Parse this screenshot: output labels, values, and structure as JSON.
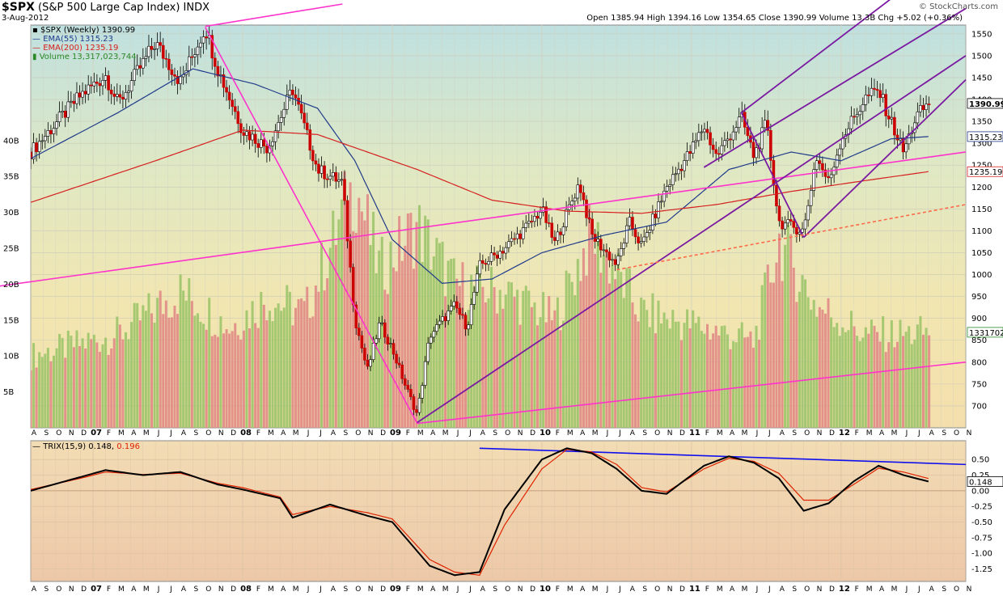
{
  "header": {
    "symbol": "$SPX",
    "name": "(S&P 500 Large Cap Index)",
    "exchange": "INDX",
    "date": "3-Aug-2012",
    "quote": "Open 1385.94  High 1394.16  Low 1354.65  Close 1390.99  Volume 13.3B  Chg +5.02 (+0.36%)",
    "credit": "© StockCharts.com"
  },
  "legend": {
    "price": "$SPX (Weekly) 1390.99",
    "ema55": "EMA(55) 1315.23",
    "ema200": "EMA(200) 1235.19",
    "volume": "Volume 13,317,023,744"
  },
  "trix_legend": {
    "label": "TRIX(15,9) 0.148,",
    "signal": "0.196"
  },
  "last_labels": {
    "price": "1390.99",
    "ema55": "1315.23",
    "ema200": "1235.19",
    "volume": "1331702",
    "trix": "0.148"
  },
  "colors": {
    "up": "#2a8a2a",
    "down": "#cc0000",
    "ema55": "#1f3a8a",
    "ema200": "#d62020",
    "magenta": "#ff33cc",
    "purple": "#7a1aa0",
    "blue": "#1010ee",
    "dashed": "#ff6a4a"
  },
  "chart_data": [
    {
      "type": "candlestick",
      "title": "$SPX (S&P 500 Large Cap Index) INDX",
      "y_ticks": [
        700,
        750,
        800,
        850,
        900,
        950,
        1000,
        1050,
        1100,
        1150,
        1200,
        1250,
        1300,
        1350,
        1400,
        1450,
        1500,
        1550
      ],
      "ylim": [
        650,
        1570
      ],
      "volume_ticks": [
        "5B",
        "10B",
        "15B",
        "20B",
        "25B",
        "30B",
        "35B",
        "40B"
      ],
      "x_axis_labels": [
        "A",
        "S",
        "O",
        "N",
        "D",
        "07",
        "F",
        "M",
        "A",
        "M",
        "J",
        "J",
        "A",
        "S",
        "O",
        "N",
        "D",
        "08",
        "F",
        "M",
        "A",
        "M",
        "J",
        "J",
        "A",
        "S",
        "O",
        "N",
        "D",
        "09",
        "F",
        "M",
        "A",
        "M",
        "J",
        "J",
        "A",
        "S",
        "O",
        "N",
        "D",
        "10",
        "F",
        "M",
        "A",
        "M",
        "J",
        "J",
        "A",
        "S",
        "O",
        "N",
        "D",
        "11",
        "F",
        "M",
        "A",
        "M",
        "J",
        "J",
        "A",
        "S",
        "O",
        "N",
        "D",
        "12",
        "F",
        "M",
        "A",
        "M",
        "J",
        "J",
        "A",
        "S",
        "O",
        "N"
      ],
      "x_range": [
        "2006-08",
        "2012-11"
      ],
      "price_keypoints": [
        {
          "date": "2006-08",
          "close": 1280
        },
        {
          "date": "2006-12",
          "close": 1410
        },
        {
          "date": "2007-02",
          "close": 1455
        },
        {
          "date": "2007-03",
          "close": 1390
        },
        {
          "date": "2007-06",
          "close": 1530
        },
        {
          "date": "2007-08",
          "close": 1440
        },
        {
          "date": "2007-10",
          "close": 1565
        },
        {
          "date": "2007-11",
          "close": 1470
        },
        {
          "date": "2008-01",
          "close": 1330
        },
        {
          "date": "2008-03",
          "close": 1290
        },
        {
          "date": "2008-05",
          "close": 1425
        },
        {
          "date": "2008-07",
          "close": 1240
        },
        {
          "date": "2008-09",
          "close": 1210
        },
        {
          "date": "2008-10",
          "close": 900
        },
        {
          "date": "2008-11",
          "close": 780
        },
        {
          "date": "2008-12",
          "close": 890
        },
        {
          "date": "2009-01",
          "close": 830
        },
        {
          "date": "2009-02",
          "close": 750
        },
        {
          "date": "2009-03",
          "close": 680
        },
        {
          "date": "2009-04",
          "close": 860
        },
        {
          "date": "2009-06",
          "close": 930
        },
        {
          "date": "2009-07",
          "close": 880
        },
        {
          "date": "2009-08",
          "close": 1020
        },
        {
          "date": "2009-10",
          "close": 1060
        },
        {
          "date": "2009-12",
          "close": 1115
        },
        {
          "date": "2010-01",
          "close": 1150
        },
        {
          "date": "2010-02",
          "close": 1070
        },
        {
          "date": "2010-04",
          "close": 1210
        },
        {
          "date": "2010-05",
          "close": 1090
        },
        {
          "date": "2010-07",
          "close": 1022
        },
        {
          "date": "2010-08",
          "close": 1120
        },
        {
          "date": "2010-09",
          "close": 1065
        },
        {
          "date": "2010-11",
          "close": 1200
        },
        {
          "date": "2011-01",
          "close": 1285
        },
        {
          "date": "2011-02",
          "close": 1340
        },
        {
          "date": "2011-03",
          "close": 1270
        },
        {
          "date": "2011-05",
          "close": 1360
        },
        {
          "date": "2011-06",
          "close": 1270
        },
        {
          "date": "2011-07",
          "close": 1345
        },
        {
          "date": "2011-08",
          "close": 1120
        },
        {
          "date": "2011-10",
          "close": 1100
        },
        {
          "date": "2011-11",
          "close": 1270
        },
        {
          "date": "2011-12",
          "close": 1210
        },
        {
          "date": "2012-01",
          "close": 1310
        },
        {
          "date": "2012-03",
          "close": 1405
        },
        {
          "date": "2012-04",
          "close": 1420
        },
        {
          "date": "2012-06",
          "close": 1280
        },
        {
          "date": "2012-07",
          "close": 1360
        },
        {
          "date": "2012-08",
          "close": 1390.99
        }
      ],
      "ema55_keypoints": [
        {
          "date": "2006-08",
          "value": 1265
        },
        {
          "date": "2007-03",
          "value": 1370
        },
        {
          "date": "2007-09",
          "value": 1470
        },
        {
          "date": "2008-02",
          "value": 1435
        },
        {
          "date": "2008-07",
          "value": 1380
        },
        {
          "date": "2008-10",
          "value": 1260
        },
        {
          "date": "2009-01",
          "value": 1080
        },
        {
          "date": "2009-05",
          "value": 980
        },
        {
          "date": "2009-09",
          "value": 990
        },
        {
          "date": "2010-01",
          "value": 1050
        },
        {
          "date": "2010-06",
          "value": 1090
        },
        {
          "date": "2010-11",
          "value": 1120
        },
        {
          "date": "2011-04",
          "value": 1240
        },
        {
          "date": "2011-09",
          "value": 1280
        },
        {
          "date": "2012-01",
          "value": 1260
        },
        {
          "date": "2012-05",
          "value": 1310
        },
        {
          "date": "2012-08",
          "value": 1315.23
        }
      ],
      "ema200_keypoints": [
        {
          "date": "2006-08",
          "value": 1165
        },
        {
          "date": "2007-06",
          "value": 1260
        },
        {
          "date": "2008-01",
          "value": 1330
        },
        {
          "date": "2008-07",
          "value": 1320
        },
        {
          "date": "2009-03",
          "value": 1240
        },
        {
          "date": "2009-09",
          "value": 1170
        },
        {
          "date": "2010-03",
          "value": 1145
        },
        {
          "date": "2010-09",
          "value": 1140
        },
        {
          "date": "2011-03",
          "value": 1160
        },
        {
          "date": "2011-09",
          "value": 1190
        },
        {
          "date": "2012-03",
          "value": 1215
        },
        {
          "date": "2012-08",
          "value": 1235.19
        }
      ],
      "volume_keypoints_B": [
        {
          "date": "2006-08",
          "value": 10
        },
        {
          "date": "2007-03",
          "value": 13
        },
        {
          "date": "2007-08",
          "value": 19
        },
        {
          "date": "2007-12",
          "value": 14
        },
        {
          "date": "2008-03",
          "value": 18
        },
        {
          "date": "2008-06",
          "value": 16
        },
        {
          "date": "2008-10",
          "value": 34
        },
        {
          "date": "2008-12",
          "value": 22
        },
        {
          "date": "2009-03",
          "value": 28
        },
        {
          "date": "2009-06",
          "value": 20
        },
        {
          "date": "2009-10",
          "value": 19
        },
        {
          "date": "2010-02",
          "value": 15
        },
        {
          "date": "2010-05",
          "value": 27
        },
        {
          "date": "2010-09",
          "value": 16
        },
        {
          "date": "2011-02",
          "value": 14
        },
        {
          "date": "2011-06",
          "value": 12
        },
        {
          "date": "2011-08",
          "value": 26
        },
        {
          "date": "2011-11",
          "value": 17
        },
        {
          "date": "2012-03",
          "value": 13
        },
        {
          "date": "2012-06",
          "value": 13
        },
        {
          "date": "2012-08",
          "value": 13.3
        }
      ]
    },
    {
      "type": "line",
      "title": "TRIX(15,9)",
      "y_ticks": [
        -1.25,
        -1.0,
        -0.75,
        -0.5,
        -0.25,
        0.0,
        0.25,
        0.5
      ],
      "ylim": [
        -1.45,
        0.8
      ],
      "series": [
        {
          "name": "TRIX(15,9) 0.148",
          "color": "#000000",
          "points": [
            {
              "date": "2006-08",
              "value": 0.0
            },
            {
              "date": "2006-12",
              "value": 0.22
            },
            {
              "date": "2007-02",
              "value": 0.33
            },
            {
              "date": "2007-05",
              "value": 0.25
            },
            {
              "date": "2007-08",
              "value": 0.3
            },
            {
              "date": "2007-11",
              "value": 0.1
            },
            {
              "date": "2008-01",
              "value": 0.02
            },
            {
              "date": "2008-04",
              "value": -0.12
            },
            {
              "date": "2008-05",
              "value": -0.43
            },
            {
              "date": "2008-08",
              "value": -0.22
            },
            {
              "date": "2008-11",
              "value": -0.4
            },
            {
              "date": "2009-01",
              "value": -0.5
            },
            {
              "date": "2009-04",
              "value": -1.2
            },
            {
              "date": "2009-06",
              "value": -1.35
            },
            {
              "date": "2009-08",
              "value": -1.3
            },
            {
              "date": "2009-10",
              "value": -0.3
            },
            {
              "date": "2010-01",
              "value": 0.5
            },
            {
              "date": "2010-03",
              "value": 0.68
            },
            {
              "date": "2010-05",
              "value": 0.6
            },
            {
              "date": "2010-07",
              "value": 0.35
            },
            {
              "date": "2010-09",
              "value": 0.0
            },
            {
              "date": "2010-11",
              "value": -0.05
            },
            {
              "date": "2011-02",
              "value": 0.4
            },
            {
              "date": "2011-04",
              "value": 0.55
            },
            {
              "date": "2011-06",
              "value": 0.45
            },
            {
              "date": "2011-08",
              "value": 0.2
            },
            {
              "date": "2011-10",
              "value": -0.32
            },
            {
              "date": "2011-12",
              "value": -0.2
            },
            {
              "date": "2012-02",
              "value": 0.15
            },
            {
              "date": "2012-04",
              "value": 0.4
            },
            {
              "date": "2012-06",
              "value": 0.25
            },
            {
              "date": "2012-08",
              "value": 0.148
            }
          ]
        },
        {
          "name": "0.196",
          "color": "#dd2200",
          "points": [
            {
              "date": "2006-08",
              "value": 0.02
            },
            {
              "date": "2006-12",
              "value": 0.2
            },
            {
              "date": "2007-02",
              "value": 0.3
            },
            {
              "date": "2007-05",
              "value": 0.26
            },
            {
              "date": "2007-08",
              "value": 0.28
            },
            {
              "date": "2007-11",
              "value": 0.12
            },
            {
              "date": "2008-01",
              "value": 0.05
            },
            {
              "date": "2008-04",
              "value": -0.1
            },
            {
              "date": "2008-05",
              "value": -0.38
            },
            {
              "date": "2008-08",
              "value": -0.25
            },
            {
              "date": "2008-11",
              "value": -0.35
            },
            {
              "date": "2009-01",
              "value": -0.45
            },
            {
              "date": "2009-04",
              "value": -1.1
            },
            {
              "date": "2009-06",
              "value": -1.3
            },
            {
              "date": "2009-08",
              "value": -1.35
            },
            {
              "date": "2009-10",
              "value": -0.55
            },
            {
              "date": "2010-01",
              "value": 0.35
            },
            {
              "date": "2010-03",
              "value": 0.66
            },
            {
              "date": "2010-05",
              "value": 0.62
            },
            {
              "date": "2010-07",
              "value": 0.42
            },
            {
              "date": "2010-09",
              "value": 0.05
            },
            {
              "date": "2010-11",
              "value": -0.02
            },
            {
              "date": "2011-02",
              "value": 0.35
            },
            {
              "date": "2011-04",
              "value": 0.52
            },
            {
              "date": "2011-06",
              "value": 0.47
            },
            {
              "date": "2011-08",
              "value": 0.28
            },
            {
              "date": "2011-10",
              "value": -0.15
            },
            {
              "date": "2011-12",
              "value": -0.15
            },
            {
              "date": "2012-02",
              "value": 0.1
            },
            {
              "date": "2012-04",
              "value": 0.36
            },
            {
              "date": "2012-06",
              "value": 0.3
            },
            {
              "date": "2012-08",
              "value": 0.196
            }
          ]
        }
      ]
    }
  ],
  "trendlines": [
    {
      "name": "magenta-top",
      "color": "magenta",
      "from": {
        "date": "2007-10",
        "value": 1567
      },
      "to": {
        "date": "2008-09",
        "value": 1618
      }
    },
    {
      "name": "magenta-crash",
      "color": "magenta",
      "from": {
        "date": "2007-10",
        "value": 1565
      },
      "to": {
        "date": "2009-03",
        "value": 660
      }
    },
    {
      "name": "magenta-mid",
      "color": "magenta",
      "from": {
        "date": "2006-02",
        "value": 960
      },
      "to": {
        "date": "2012-11",
        "value": 1280
      }
    },
    {
      "name": "magenta-low",
      "color": "magenta",
      "from": {
        "date": "2009-03",
        "value": 660
      },
      "to": {
        "date": "2012-11",
        "value": 800
      }
    },
    {
      "name": "purple-lower",
      "color": "purple",
      "from": {
        "date": "2009-03",
        "value": 662
      },
      "to": {
        "date": "2012-11",
        "value": 1500
      }
    },
    {
      "name": "purple-upper",
      "color": "purple",
      "from": {
        "date": "2011-05",
        "value": 1370
      },
      "to": {
        "date": "2012-11",
        "value": 1760
      }
    },
    {
      "name": "purple-zigzag-a",
      "color": "purple",
      "from": {
        "date": "2011-05",
        "value": 1370
      },
      "to": {
        "date": "2011-10",
        "value": 1085
      }
    },
    {
      "name": "purple-zigzag-b",
      "color": "purple",
      "from": {
        "date": "2011-10",
        "value": 1085
      },
      "to": {
        "date": "2012-11",
        "value": 1445
      }
    },
    {
      "name": "purple-zigzag-c",
      "color": "purple",
      "from": {
        "date": "2011-02",
        "value": 1245
      },
      "to": {
        "date": "2012-11",
        "value": 1608
      }
    },
    {
      "name": "dashed-support",
      "color": "dashed",
      "dashed": true,
      "from": {
        "date": "2010-07",
        "value": 1011
      },
      "to": {
        "date": "2012-11",
        "value": 1160
      }
    },
    {
      "name": "trix-resistance",
      "color": "blue",
      "pane": "trix",
      "from": {
        "date": "2009-08",
        "value": 0.68
      },
      "to": {
        "date": "2012-11",
        "value": 0.42
      }
    }
  ]
}
